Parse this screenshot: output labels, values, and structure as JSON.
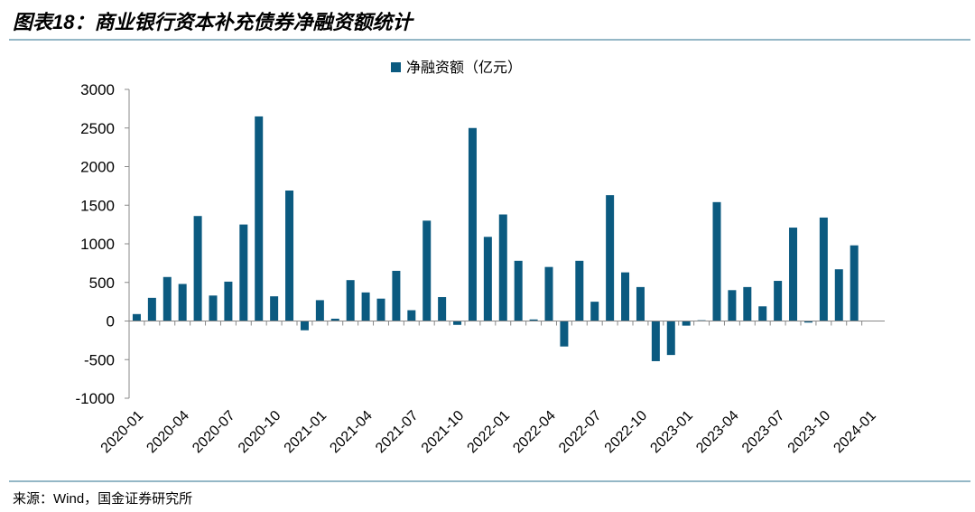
{
  "chart_data": {
    "type": "bar",
    "title": "图表18：商业银行资本补充债券净融资额统计",
    "source": "来源：Wind，国金证券研究所",
    "categories": [
      "2020-01",
      null,
      null,
      "2020-04",
      null,
      null,
      "2020-07",
      null,
      null,
      "2020-10",
      null,
      null,
      "2021-01",
      null,
      null,
      "2021-04",
      null,
      null,
      "2021-07",
      null,
      null,
      "2021-10",
      null,
      null,
      "2022-01",
      null,
      null,
      "2022-04",
      null,
      null,
      "2022-07",
      null,
      null,
      "2022-10",
      null,
      null,
      "2023-01",
      null,
      null,
      "2023-04",
      null,
      null,
      "2023-07",
      null,
      null,
      "2023-10",
      null,
      null,
      "2024-01"
    ],
    "series": [
      {
        "name": "净融资额（亿元）",
        "color": "#0b5a80",
        "values": [
          90,
          300,
          570,
          480,
          1360,
          330,
          510,
          1250,
          2650,
          320,
          1690,
          -120,
          270,
          30,
          530,
          370,
          290,
          650,
          140,
          1300,
          310,
          -50,
          2500,
          1090,
          1380,
          780,
          20,
          700,
          -330,
          780,
          250,
          1630,
          630,
          440,
          -520,
          -440,
          -60,
          10,
          1540,
          400,
          440,
          190,
          520,
          1210,
          -20,
          1340,
          670,
          980,
          null
        ]
      }
    ],
    "ylim": [
      -1000,
      3000
    ],
    "yticks": [
      -1000,
      -500,
      0,
      500,
      1000,
      1500,
      2000,
      2500,
      3000
    ],
    "legend": "top"
  }
}
